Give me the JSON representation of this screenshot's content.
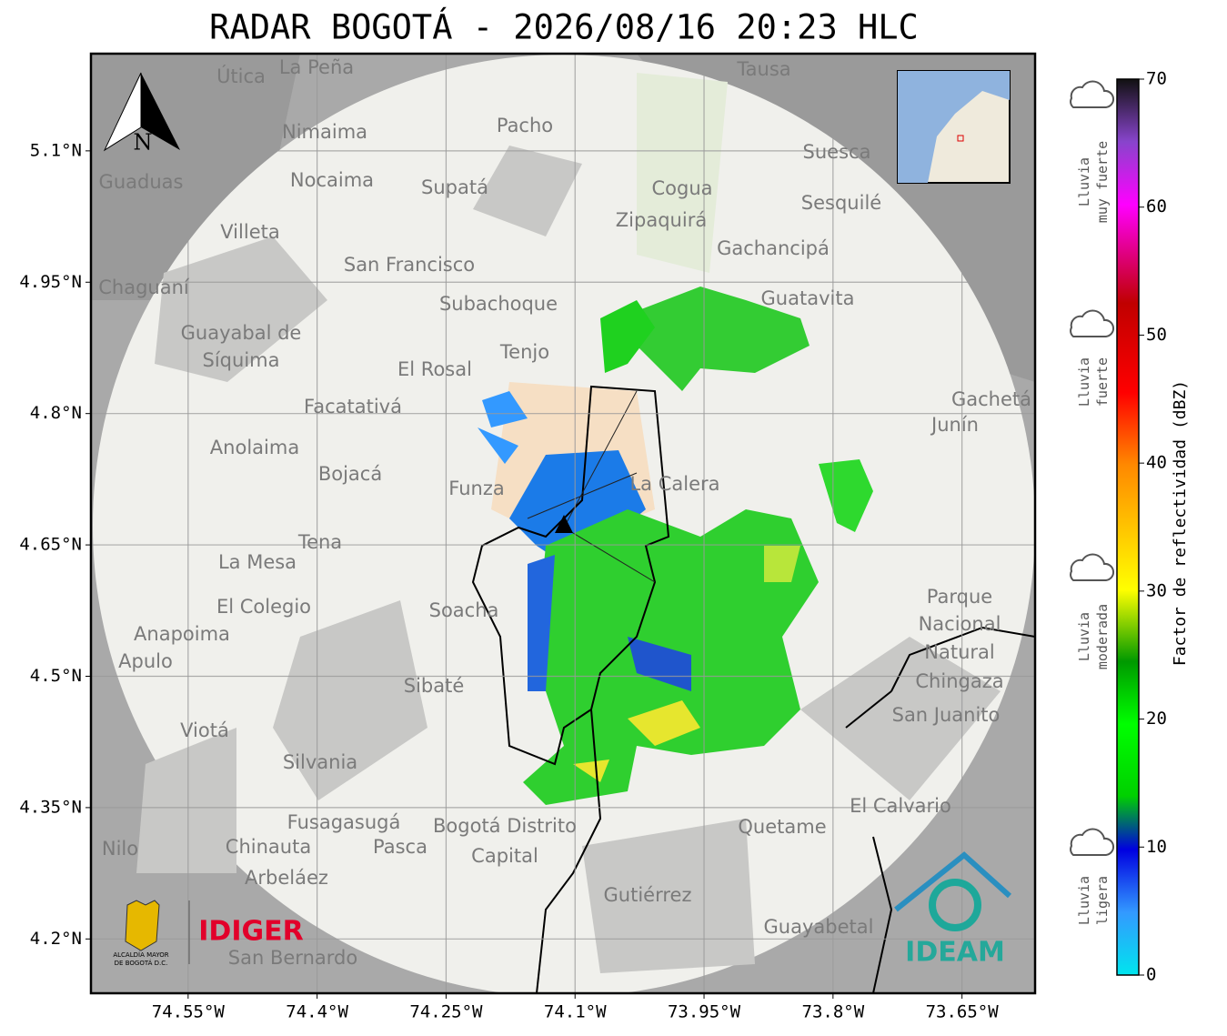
{
  "title": "RADAR BOGOTÁ - 2026/08/16 20:23 HLC",
  "map": {
    "latlim": [
      4.138,
      5.211
    ],
    "lonlim": [
      -74.663,
      -73.565
    ],
    "lat_ticks": [
      {
        "value": 5.1,
        "label": "5.1°N"
      },
      {
        "value": 4.95,
        "label": "4.95°N"
      },
      {
        "value": 4.8,
        "label": "4.8°N"
      },
      {
        "value": 4.65,
        "label": "4.65°N"
      },
      {
        "value": 4.5,
        "label": "4.5°N"
      },
      {
        "value": 4.35,
        "label": "4.35°N"
      },
      {
        "value": 4.2,
        "label": "4.2°N"
      }
    ],
    "lon_ticks": [
      {
        "value": -74.55,
        "label": "74.55°W"
      },
      {
        "value": -74.4,
        "label": "74.4°W"
      },
      {
        "value": -74.25,
        "label": "74.25°W"
      },
      {
        "value": -74.1,
        "label": "74.1°W"
      },
      {
        "value": -73.95,
        "label": "73.95°W"
      },
      {
        "value": -73.8,
        "label": "73.8°W"
      },
      {
        "value": -73.65,
        "label": "73.65°W"
      }
    ],
    "north_label": "N",
    "places": [
      "La Peña",
      "Útica",
      "Tausa",
      "Pacho",
      "Nimaima",
      "Suesca",
      "Guaduas",
      "Nocaima",
      "Supatá",
      "Cogua",
      "Sesquilé",
      "Zipaquirá",
      "Villeta",
      "Gachancipá",
      "San Francisco",
      "Chaguaní",
      "Guatavita",
      "Subachoque",
      "Guayabal de",
      "Síquima",
      "Tenjo",
      "El Rosal",
      "Facatativá",
      "Gachetá",
      "Junín",
      "Anolaima",
      "Bojacá",
      "La Calera",
      "Funza",
      "Tena",
      "La Mesa",
      "Soacha",
      "El Colegio",
      "Parque",
      "Nacional",
      "Natural",
      "Chingaza",
      "Anapoima",
      "Apulo",
      "Sibaté",
      "San Juanito",
      "Viotá",
      "Silvania",
      "El Calvario",
      "Fusagasugá",
      "Bogotá Distrito",
      "Capital",
      "Quetame",
      "Chinauta",
      "Pasca",
      "Nilo",
      "Arbeláez",
      "Gutiérrez",
      "Guayabetal",
      "San Bernardo"
    ]
  },
  "colorbar": {
    "label": "Factor de reflectividad (dBZ)",
    "lim": [
      0,
      70
    ],
    "ticks": [
      0,
      10,
      20,
      30,
      40,
      50,
      60,
      70
    ],
    "levels": [
      [
        "Lluvia",
        "muy fuerte"
      ],
      [
        "Lluvia",
        "fuerte"
      ],
      [
        "Lluvia",
        "moderada"
      ],
      [
        "Lluvia",
        "ligera"
      ]
    ]
  },
  "logos": {
    "alcaldia": [
      "ALCALDÍA MAYOR",
      "DE BOGOTÁ D.C."
    ],
    "idiger": "IDIGER",
    "ideam": "IDEAM"
  }
}
